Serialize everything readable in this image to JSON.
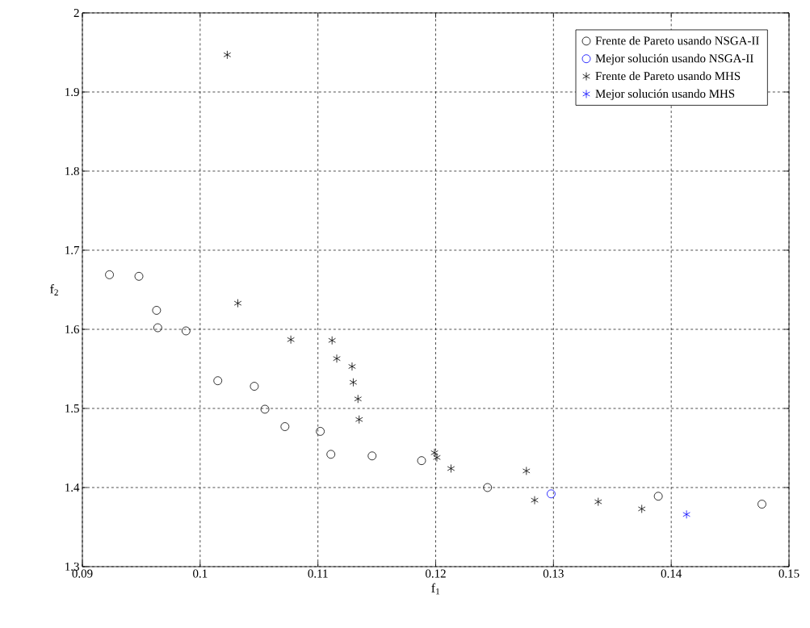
{
  "chart_data": {
    "type": "scatter",
    "xlabel": "f$_{1}$",
    "ylabel": "f$_{2}$",
    "xlim": [
      0.09,
      0.15
    ],
    "ylim": [
      1.3,
      2
    ],
    "xticks": [
      0.09,
      0.1,
      0.11,
      0.12,
      0.13,
      0.14,
      0.15
    ],
    "yticks": [
      1.3,
      1.4,
      1.5,
      1.6,
      1.7,
      1.8,
      1.9,
      2
    ],
    "grid": true,
    "legend": "top right",
    "series": [
      {
        "name": "Frente de Pareto usando NSGA-II",
        "color": "#000000",
        "marker": "circle",
        "x": [
          0.0923,
          0.0948,
          0.0963,
          0.0964,
          0.0988,
          0.1015,
          0.1046,
          0.1055,
          0.1072,
          0.1102,
          0.1111,
          0.1146,
          0.1188,
          0.1244,
          0.1389,
          0.1477
        ],
        "values": [
          1.669,
          1.667,
          1.624,
          1.602,
          1.598,
          1.535,
          1.528,
          1.499,
          1.477,
          1.471,
          1.442,
          1.44,
          1.434,
          1.4,
          1.389,
          1.379
        ]
      },
      {
        "name": "Mejor solución usando NSGA-II",
        "color": "#0000ff",
        "marker": "circle",
        "x": [
          0.1298
        ],
        "values": [
          1.392
        ]
      },
      {
        "name": "Frente de Pareto usando MHS",
        "color": "#000000",
        "marker": "cross",
        "x": [
          0.1023,
          0.1032,
          0.1077,
          0.1112,
          0.1116,
          0.1129,
          0.113,
          0.1134,
          0.1135,
          0.1199,
          0.1201,
          0.1213,
          0.1277,
          0.1284,
          0.1338,
          0.1375
        ],
        "values": [
          1.947,
          1.633,
          1.587,
          1.586,
          1.563,
          1.553,
          1.533,
          1.512,
          1.486,
          1.444,
          1.438,
          1.424,
          1.421,
          1.384,
          1.382,
          1.373
        ]
      },
      {
        "name": "Mejor solución usando MHS",
        "color": "#0000ff",
        "marker": "cross",
        "x": [
          0.1413
        ],
        "values": [
          1.366
        ]
      }
    ]
  }
}
